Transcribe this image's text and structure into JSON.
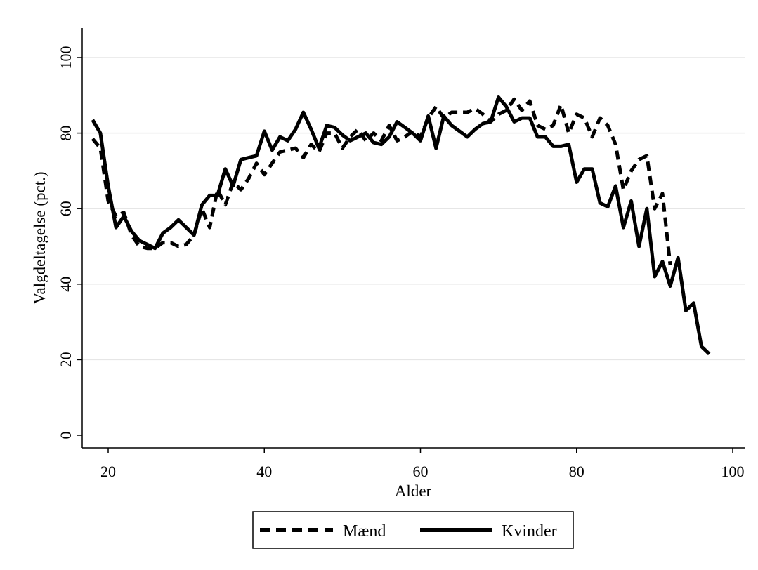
{
  "chart_data": {
    "type": "line",
    "title": "",
    "xlabel": "Alder",
    "ylabel": "Valgdeltagelse (pct.)",
    "xlim": [
      17,
      102
    ],
    "ylim": [
      -2,
      108
    ],
    "x_ticks": [
      20,
      40,
      60,
      80,
      100
    ],
    "y_ticks": [
      0,
      20,
      40,
      60,
      80,
      100
    ],
    "grid": "horizontal",
    "legend_position": "bottom",
    "series": [
      {
        "name": "Mænd",
        "style": "dashed",
        "color": "#000000",
        "x": [
          18,
          19,
          20,
          21,
          22,
          23,
          24,
          25,
          26,
          27,
          28,
          29,
          30,
          31,
          32,
          33,
          34,
          35,
          36,
          37,
          38,
          39,
          40,
          41,
          42,
          43,
          44,
          45,
          46,
          47,
          48,
          49,
          50,
          51,
          52,
          53,
          54,
          55,
          56,
          57,
          58,
          59,
          60,
          61,
          62,
          63,
          64,
          65,
          66,
          67,
          68,
          69,
          70,
          71,
          72,
          73,
          74,
          75,
          76,
          77,
          78,
          79,
          80,
          81,
          82,
          83,
          84,
          85,
          86,
          87,
          88,
          89,
          90,
          91,
          92
        ],
        "y": [
          78.5,
          76,
          62,
          58,
          59,
          53,
          50,
          49.5,
          49.5,
          51,
          51,
          50,
          50.5,
          53,
          60,
          55,
          65,
          61,
          67,
          65,
          68,
          72,
          69,
          72,
          75,
          75.5,
          76,
          73.5,
          77,
          75,
          80,
          80,
          76,
          79,
          81,
          78,
          80,
          78,
          82,
          78,
          79,
          80.5,
          79,
          84,
          87,
          84,
          85.5,
          85.5,
          85.5,
          86.5,
          85,
          83,
          85,
          86,
          89,
          86,
          88.5,
          82,
          81,
          82,
          87.5,
          80,
          85,
          84,
          79,
          84,
          82,
          77,
          65,
          70,
          73,
          74,
          60,
          64,
          45
        ]
      },
      {
        "name": "Kvinder",
        "style": "solid",
        "color": "#000000",
        "x": [
          18,
          19,
          20,
          21,
          22,
          23,
          24,
          25,
          26,
          27,
          28,
          29,
          30,
          31,
          32,
          33,
          34,
          35,
          36,
          37,
          38,
          39,
          40,
          41,
          42,
          43,
          44,
          45,
          46,
          47,
          48,
          49,
          50,
          51,
          52,
          53,
          54,
          55,
          56,
          57,
          58,
          59,
          60,
          61,
          62,
          63,
          64,
          65,
          66,
          67,
          68,
          69,
          70,
          71,
          72,
          73,
          74,
          75,
          76,
          77,
          78,
          79,
          80,
          81,
          82,
          83,
          84,
          85,
          86,
          87,
          88,
          89,
          90,
          91,
          92,
          93,
          94,
          95,
          96,
          97
        ],
        "y": [
          83.5,
          80,
          66,
          55,
          58,
          54,
          51.5,
          50.5,
          49.5,
          53.5,
          55,
          57,
          55,
          53,
          61,
          63.5,
          63.5,
          70.5,
          66,
          73,
          73.5,
          74,
          80.5,
          75.5,
          79,
          78,
          81,
          85.5,
          81,
          76,
          82,
          81.5,
          79.5,
          78,
          79,
          80,
          77.5,
          77,
          79,
          83,
          81.5,
          80,
          78,
          84.5,
          76,
          84.5,
          82,
          80.5,
          79,
          81,
          82.5,
          83,
          89.5,
          87,
          83,
          84,
          84,
          79,
          79,
          76.5,
          76.5,
          77,
          67,
          70.5,
          70.5,
          61.5,
          60.5,
          66,
          55,
          62,
          50,
          60,
          42,
          46,
          39.5,
          47,
          33,
          35,
          23.5,
          21.5
        ]
      }
    ]
  }
}
